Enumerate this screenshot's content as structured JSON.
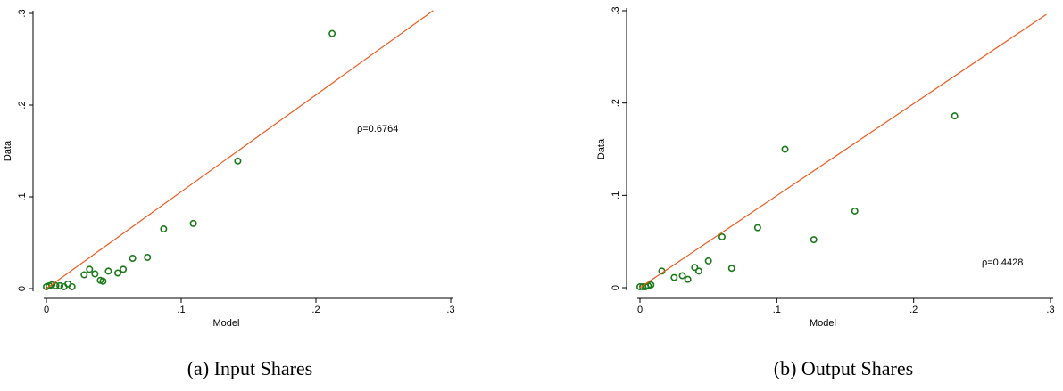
{
  "chart_data": [
    {
      "type": "scatter",
      "caption": "(a) Input Shares",
      "xlabel": "Model",
      "ylabel": "Data",
      "annotation": "ρ=0.6764",
      "xlim": [
        0,
        0.3
      ],
      "ylim": [
        0,
        0.3
      ],
      "xticks": [
        0,
        {
          "value": 0.1,
          "label": ".1"
        },
        {
          "value": 0.2,
          "label": ".2"
        },
        {
          "value": 0.3,
          "label": ".3"
        }
      ],
      "yticks": [
        0,
        {
          "value": 0.1,
          "label": ".1"
        },
        {
          "value": 0.2,
          "label": ".2"
        },
        {
          "value": 0.3,
          "label": ".3"
        }
      ],
      "series": [
        {
          "mode": "markers",
          "color": "#1a7a1a",
          "x": [
            0,
            0.002,
            0.004,
            0.007,
            0.01,
            0.013,
            0.016,
            0.019,
            0.028,
            0.032,
            0.036,
            0.04,
            0.042,
            0.046,
            0.053,
            0.057,
            0.064,
            0.075,
            0.087,
            0.109,
            0.142,
            0.212
          ],
          "values": [
            0.002,
            0.003,
            0.004,
            0.003,
            0.003,
            0.002,
            0.005,
            0.002,
            0.015,
            0.021,
            0.016,
            0.009,
            0.008,
            0.019,
            0.017,
            0.021,
            0.033,
            0.034,
            0.065,
            0.071,
            0.139,
            0.278
          ]
        },
        {
          "mode": "line",
          "color": "#f05a1e",
          "x": [
            0,
            0.287
          ],
          "values": [
            0,
            0.303
          ]
        }
      ]
    },
    {
      "type": "scatter",
      "caption": "(b) Output Shares",
      "xlabel": "Model",
      "ylabel": "Data",
      "annotation": "ρ=0.4428",
      "xlim": [
        0,
        0.3
      ],
      "ylim": [
        0,
        0.3
      ],
      "xticks": [
        0,
        {
          "value": 0.1,
          "label": ".1"
        },
        {
          "value": 0.2,
          "label": ".2"
        },
        {
          "value": 0.3,
          "label": ".3"
        }
      ],
      "yticks": [
        0,
        {
          "value": 0.1,
          "label": ".1"
        },
        {
          "value": 0.2,
          "label": ".2"
        },
        {
          "value": 0.3,
          "label": ".3"
        }
      ],
      "series": [
        {
          "mode": "markers",
          "color": "#1a7a1a",
          "x": [
            0,
            0.002,
            0.004,
            0.006,
            0.008,
            0.016,
            0.025,
            0.031,
            0.035,
            0.04,
            0.043,
            0.05,
            0.06,
            0.067,
            0.086,
            0.106,
            0.127,
            0.157,
            0.23
          ],
          "values": [
            0.001,
            0.001,
            0.001,
            0.002,
            0.003,
            0.018,
            0.011,
            0.013,
            0.009,
            0.022,
            0.018,
            0.029,
            0.055,
            0.021,
            0.065,
            0.15,
            0.052,
            0.083,
            0.186
          ]
        },
        {
          "mode": "line",
          "color": "#f05a1e",
          "x": [
            0,
            0.297
          ],
          "values": [
            0,
            0.296
          ]
        }
      ]
    }
  ]
}
